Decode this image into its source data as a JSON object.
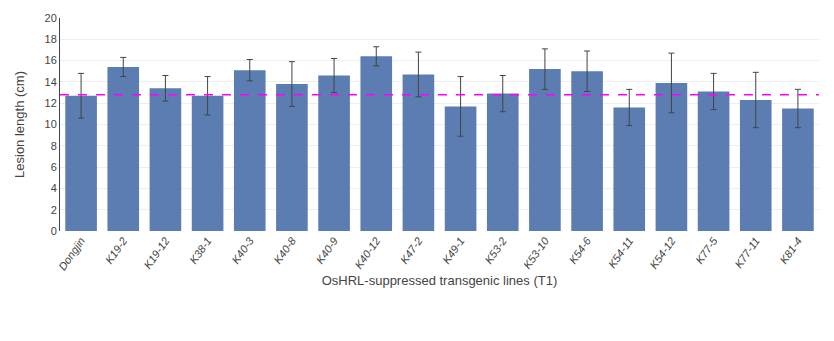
{
  "chart_data": {
    "type": "bar",
    "categories": [
      "Dongjin",
      "K19-2",
      "K19-12",
      "K38-1",
      "K40-3",
      "K40-8",
      "K40-9",
      "K40-12",
      "K47-2",
      "K49-1",
      "K53-2",
      "K53-10",
      "K54-6",
      "K54-11",
      "K54-12",
      "K77-5",
      "K77-11",
      "K81-4"
    ],
    "values": [
      12.7,
      15.4,
      13.4,
      12.7,
      15.1,
      13.8,
      14.6,
      16.4,
      14.7,
      11.7,
      12.9,
      15.2,
      15.0,
      11.6,
      13.9,
      13.1,
      12.3,
      11.5
    ],
    "errors": [
      2.1,
      0.9,
      1.2,
      1.8,
      1.0,
      2.1,
      1.6,
      0.9,
      2.1,
      2.8,
      1.7,
      1.9,
      1.9,
      1.7,
      2.8,
      1.7,
      2.6,
      1.8
    ],
    "color": "#5b7db1",
    "hline": {
      "y": 12.8,
      "color": "#ff00ff",
      "line_style": "dashed"
    },
    "xlabel": "OsHRL-suppressed transgenic lines (T1)",
    "ylabel": "Lesion length (cm)",
    "ylim": [
      0,
      20
    ],
    "yticks": [
      0,
      2,
      4,
      6,
      8,
      10,
      12,
      14,
      16,
      18,
      20
    ],
    "grid": true
  }
}
